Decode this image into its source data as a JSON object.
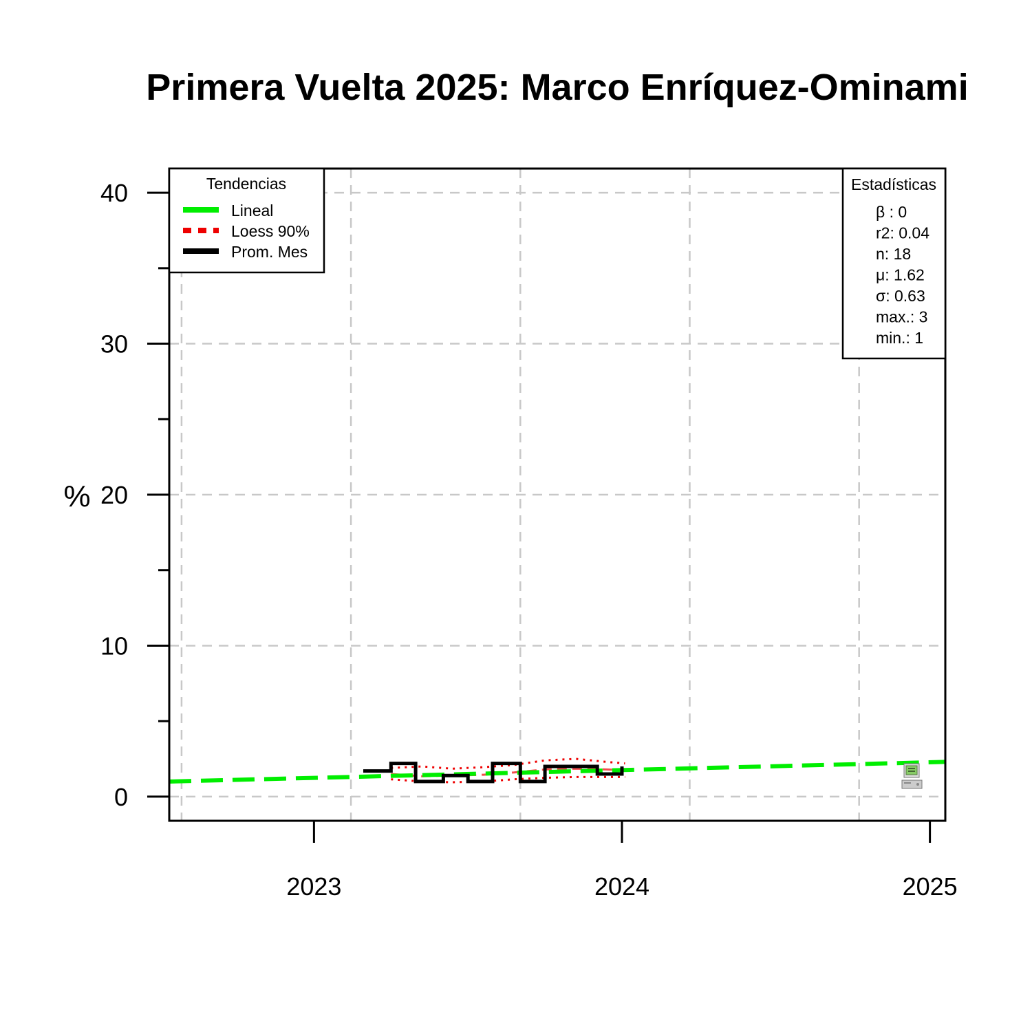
{
  "chart_data": {
    "type": "line",
    "title": "Primera Vuelta 2025: Marco Enríquez-Ominami",
    "ylabel": "%",
    "xlabel": "",
    "ylim": [
      -1.6,
      41.6
    ],
    "xlim": [
      2022.53,
      2025.05
    ],
    "yticks": [
      0,
      10,
      20,
      30,
      40
    ],
    "yminor_ticks": [
      5,
      15,
      25,
      35
    ],
    "xticks": [
      2023,
      2024,
      2025
    ],
    "xtick_labels": [
      "2023",
      "2024",
      "2025"
    ],
    "grid": true,
    "grid_x": [
      2022.57,
      2023.12,
      2023.67,
      2024.22,
      2024.77
    ],
    "legend": {
      "title": "Tendencias",
      "placement": "top-left",
      "items": [
        {
          "label": "Lineal",
          "color": "#00ee00",
          "style": "solid"
        },
        {
          "label": "Loess 90%",
          "color": "#ee0000",
          "style": "dashed"
        },
        {
          "label": "Prom. Mes",
          "color": "#000000",
          "style": "solid"
        }
      ]
    },
    "stats": {
      "title": "Estadísticas",
      "placement": "top-right",
      "lines": [
        "β : 0",
        "r2: 0.04",
        "n: 18",
        "μ: 1.62",
        "σ: 0.63",
        "max.: 3",
        "min.: 1"
      ]
    },
    "series": [
      {
        "name": "Lineal",
        "kind": "trend",
        "color": "#00ee00",
        "x": [
          2022.53,
          2025.05
        ],
        "y": [
          1.0,
          2.3
        ]
      },
      {
        "name": "Loess 90%",
        "kind": "loess",
        "color": "#ee0000",
        "x": [
          2023.25,
          2023.35,
          2023.45,
          2023.55,
          2023.65,
          2023.75,
          2023.85,
          2023.95,
          2024.01
        ],
        "y": [
          1.5,
          1.35,
          1.4,
          1.45,
          1.6,
          1.8,
          1.85,
          1.8,
          1.75
        ],
        "upper": [
          1.9,
          2.0,
          1.85,
          1.95,
          2.1,
          2.4,
          2.5,
          2.3,
          2.2
        ],
        "lower": [
          1.15,
          1.0,
          0.95,
          1.0,
          1.15,
          1.25,
          1.3,
          1.3,
          1.3
        ]
      },
      {
        "name": "Prom. Mes",
        "kind": "step",
        "color": "#000000",
        "x": [
          2023.16,
          2023.25,
          2023.33,
          2023.42,
          2023.5,
          2023.58,
          2023.67,
          2023.75,
          2023.84,
          2023.92,
          2024.0
        ],
        "y": [
          1.7,
          2.2,
          1.0,
          1.4,
          1.0,
          2.2,
          1.0,
          2.0,
          2.0,
          1.5,
          2.0
        ]
      }
    ]
  },
  "icon": {
    "name": "computer-icon",
    "color": "#88cc66"
  }
}
